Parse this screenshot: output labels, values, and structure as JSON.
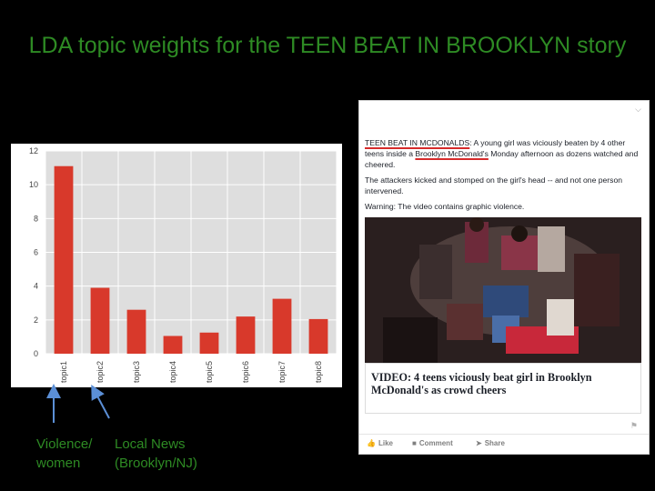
{
  "slide": {
    "title": "LDA topic weights for the TEEN BEAT IN BROOKLYN story"
  },
  "chart_data": {
    "type": "bar",
    "categories": [
      "topic1",
      "topic2",
      "topic3",
      "topic4",
      "topic5",
      "topic6",
      "topic7",
      "topic8"
    ],
    "values": [
      11.1,
      3.9,
      2.6,
      1.05,
      1.25,
      2.2,
      3.25,
      2.05
    ],
    "yticks": [
      0,
      2,
      4,
      6,
      8,
      10,
      12
    ],
    "ylim": [
      0,
      12
    ],
    "grid": true,
    "bar_color": "#d8392b",
    "plot_bg": "#dedede"
  },
  "annotations": [
    {
      "line1": "Violence/",
      "line2": "women"
    },
    {
      "line1": "Local News",
      "line2": "(Brooklyn/NJ)"
    }
  ],
  "annotation_color": "#2e8b24",
  "arrow_color": "#5b8fd6",
  "fb_post": {
    "para1_hl1": "TEEN BEAT IN MCDONALDS",
    "para1_a": ": A young girl was viciously beaten by 4 other teens inside a ",
    "para1_hl2": "Brooklyn McDonald's",
    "para1_b": " Monday afternoon as dozens watched and cheered.",
    "para2": "The attackers kicked and stomped on the girl's head -- and not one person intervened.",
    "para3": "Warning: The video contains graphic violence.",
    "headline": "VIDEO: 4 teens viciously beat girl in Brooklyn McDonald's as crowd cheers",
    "actions": {
      "like": "Like",
      "comment": "Comment",
      "share": "Share"
    }
  }
}
